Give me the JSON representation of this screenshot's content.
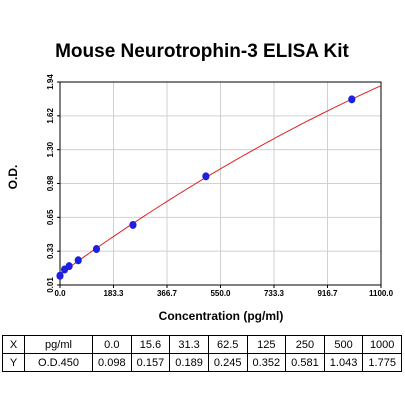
{
  "chart_data": {
    "type": "scatter",
    "title": "Mouse Neurotrophin-3 ELISA Kit",
    "xlabel": "Concentration (pg/ml)",
    "ylabel": "O.D.",
    "xlim": [
      0.0,
      1100.0
    ],
    "ylim": [
      0.01,
      1.94
    ],
    "x_ticks": [
      "0.0",
      "183.3",
      "366.7",
      "550.0",
      "733.3",
      "916.7",
      "1100.0"
    ],
    "y_ticks": [
      "0.01",
      "0.33",
      "0.65",
      "0.98",
      "1.30",
      "1.62",
      "1.94"
    ],
    "grid": true,
    "series": [
      {
        "x": [
          0,
          15.6,
          31.3,
          62.5,
          125,
          250,
          500,
          1000
        ],
        "y": [
          0.098,
          0.157,
          0.189,
          0.245,
          0.352,
          0.581,
          1.043,
          1.775
        ],
        "point_color": "#1f1fe0",
        "line_color": "#e02020"
      }
    ]
  },
  "table": {
    "header": [
      "X",
      "pg/ml",
      "0.0",
      "15.6",
      "31.3",
      "62.5",
      "125",
      "250",
      "500",
      "1000"
    ],
    "row": [
      "Y",
      "O.D.450",
      "0.098",
      "0.157",
      "0.189",
      "0.245",
      "0.352",
      "0.581",
      "1.043",
      "1.775"
    ]
  }
}
